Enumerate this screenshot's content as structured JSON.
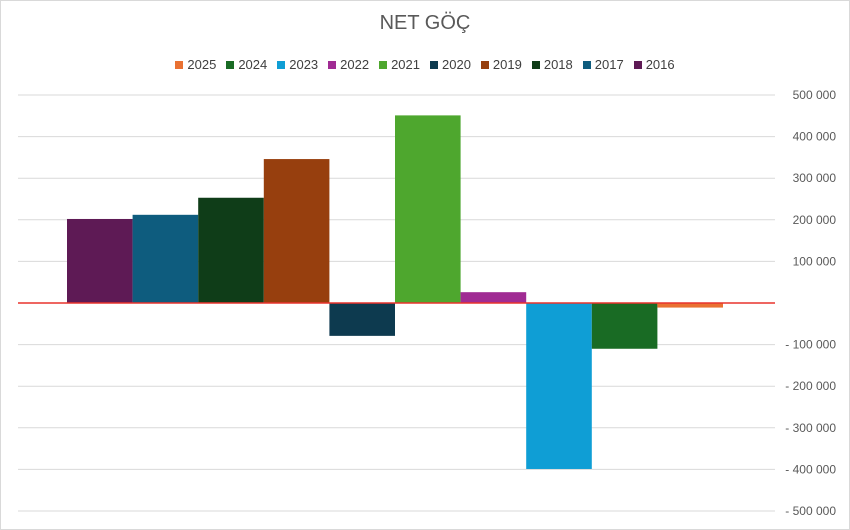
{
  "chart_data": {
    "type": "bar",
    "title": "NET GÖÇ",
    "xlabel": "",
    "ylabel": "",
    "ylim": [
      -500000,
      500000
    ],
    "y_ticks": [
      500000,
      400000,
      300000,
      200000,
      100000,
      -100000,
      -200000,
      -300000,
      -400000,
      -500000
    ],
    "y_tick_labels": [
      "500 000",
      "400 000",
      "300 000",
      "200 000",
      "100 000",
      "- 100 000",
      "- 200 000",
      "- 300 000",
      "- 400 000",
      "- 500 000"
    ],
    "grid": true,
    "legend_position": "top",
    "legend_order": [
      "2025",
      "2024",
      "2023",
      "2022",
      "2021",
      "2020",
      "2019",
      "2018",
      "2017",
      "2016"
    ],
    "series": [
      {
        "name": "2016",
        "value": 202000,
        "color": "#5e1a55"
      },
      {
        "name": "2017",
        "value": 212000,
        "color": "#0e5c7e"
      },
      {
        "name": "2018",
        "value": 253000,
        "color": "#0f3d18"
      },
      {
        "name": "2019",
        "value": 346000,
        "color": "#973f0e"
      },
      {
        "name": "2020",
        "value": -79000,
        "color": "#0d3a4f"
      },
      {
        "name": "2021",
        "value": 451000,
        "color": "#4ea72e"
      },
      {
        "name": "2022",
        "value": 26000,
        "color": "#a02b93"
      },
      {
        "name": "2023",
        "value": -399000,
        "color": "#0f9ed5"
      },
      {
        "name": "2024",
        "value": -110000,
        "color": "#196b24"
      },
      {
        "name": "2025",
        "value": -11000,
        "color": "#e97132"
      }
    ],
    "zero_line_color": "#e8332d"
  }
}
